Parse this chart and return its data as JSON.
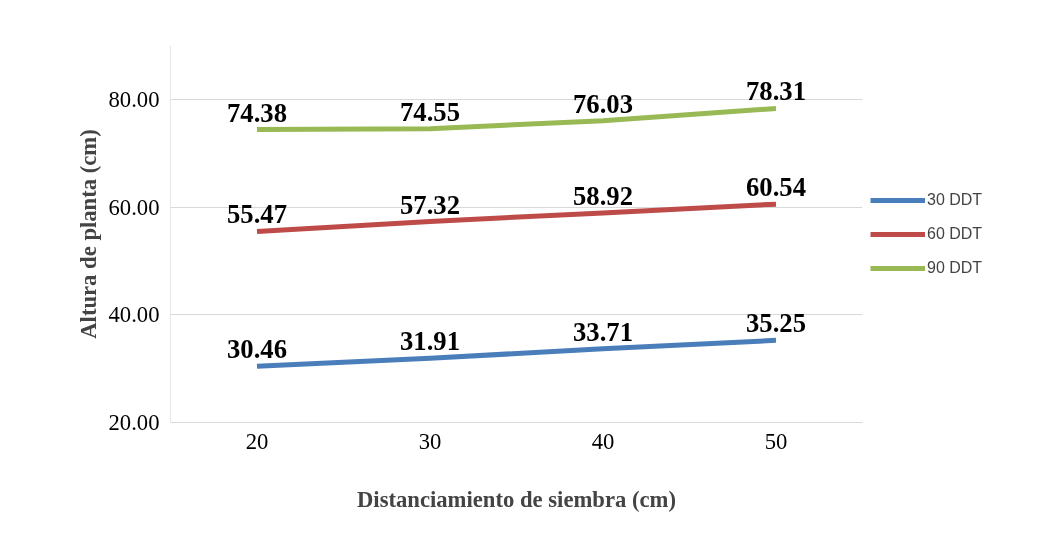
{
  "chart_data": {
    "type": "line",
    "xlabel": "Distanciamiento de siembra (cm)",
    "ylabel": "Altura de planta (cm)",
    "categories": [
      "20",
      "30",
      "40",
      "50"
    ],
    "series": [
      {
        "name": "30 DDT",
        "color": "#4a7ebb",
        "values": [
          30.46,
          31.91,
          33.71,
          35.25
        ]
      },
      {
        "name": "60 DDT",
        "color": "#be4b48",
        "values": [
          55.47,
          57.32,
          58.92,
          60.54
        ]
      },
      {
        "name": "90 DDT",
        "color": "#98b954",
        "values": [
          74.38,
          74.55,
          76.03,
          78.31
        ]
      }
    ],
    "ylim": [
      20,
      90
    ],
    "yticks": [
      {
        "value": 20,
        "label": "20.00"
      },
      {
        "value": 40,
        "label": "40.00"
      },
      {
        "value": 60,
        "label": "60.00"
      },
      {
        "value": 80,
        "label": "80.00"
      }
    ],
    "grid": "y",
    "legend": "right",
    "data_labels": true,
    "marker": "none",
    "line_style": "solid"
  }
}
